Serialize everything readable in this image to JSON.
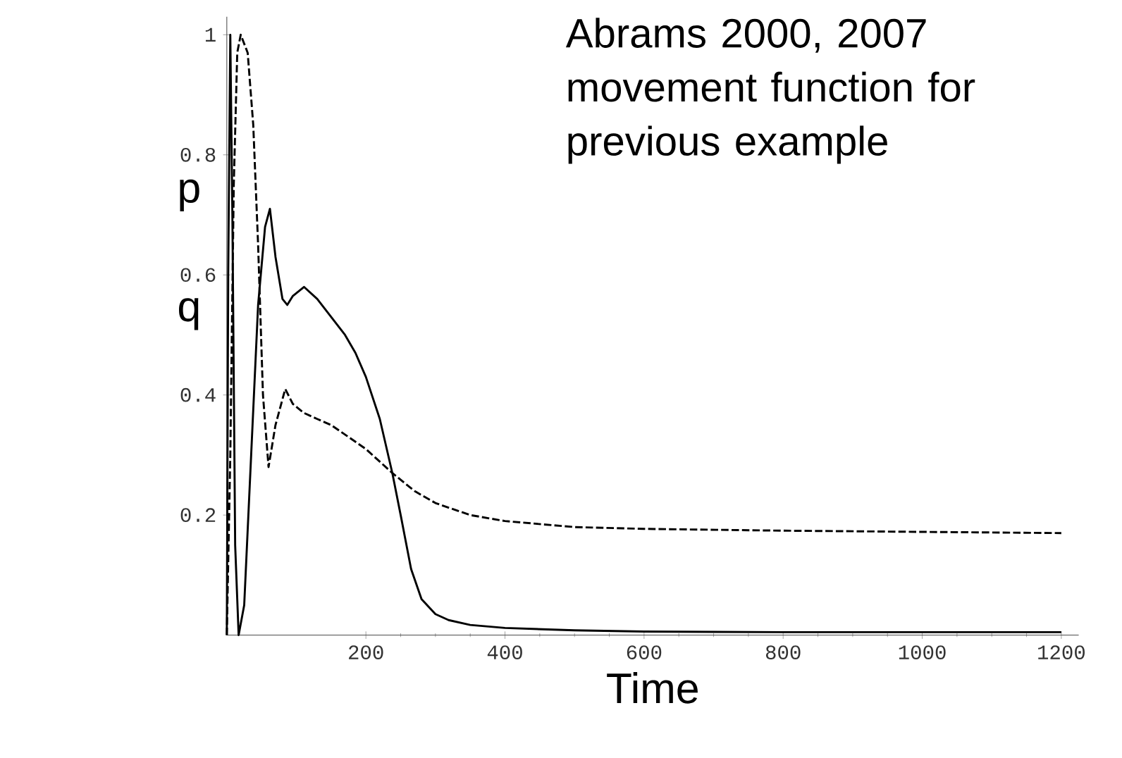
{
  "chart_data": {
    "type": "line",
    "xlabel": "Time",
    "annotations": [
      "Abrams 2000, 2007 movement function for previous example"
    ],
    "x": [
      0,
      2,
      5,
      8,
      12,
      17,
      25,
      35,
      45,
      55,
      62,
      70,
      80,
      87,
      95,
      111,
      130,
      150,
      170,
      185,
      200,
      220,
      238,
      250,
      265,
      280,
      300,
      319,
      350,
      400,
      500,
      600,
      800,
      1000,
      1200
    ],
    "series": [
      {
        "name": "p",
        "color": "#000000",
        "line_style": "solid",
        "values": [
          0,
          0.6,
          1.0,
          0.7,
          0.15,
          0,
          0.05,
          0.3,
          0.55,
          0.68,
          0.71,
          0.63,
          0.56,
          0.55,
          0.565,
          0.58,
          0.56,
          0.53,
          0.5,
          0.47,
          0.43,
          0.36,
          0.27,
          0.2,
          0.11,
          0.06,
          0.035,
          0.025,
          0.017,
          0.012,
          0.008,
          0.006,
          0.005,
          0.005,
          0.005
        ]
      },
      {
        "name": "q",
        "color": "#000000",
        "line_style": "dashed",
        "x": [
          0,
          5,
          10,
          15,
          20,
          30,
          38,
          45,
          52,
          60,
          70,
          84,
          95,
          111,
          130,
          150,
          175,
          200,
          238,
          270,
          300,
          350,
          400,
          500,
          600,
          800,
          1000,
          1200
        ],
        "values": [
          0,
          0.3,
          0.75,
          0.97,
          1.0,
          0.97,
          0.85,
          0.65,
          0.4,
          0.28,
          0.35,
          0.41,
          0.385,
          0.37,
          0.36,
          0.35,
          0.33,
          0.31,
          0.27,
          0.24,
          0.22,
          0.2,
          0.19,
          0.18,
          0.177,
          0.174,
          0.172,
          0.17
        ]
      }
    ],
    "xlim": [
      0,
      1225
    ],
    "ylim": [
      0,
      1.03
    ],
    "xticks": [
      200,
      400,
      600,
      800,
      1000,
      1200
    ],
    "yticks": [
      0.2,
      0.4,
      0.6,
      0.8,
      1
    ],
    "grid": false,
    "legend": "left",
    "marker": "none"
  }
}
